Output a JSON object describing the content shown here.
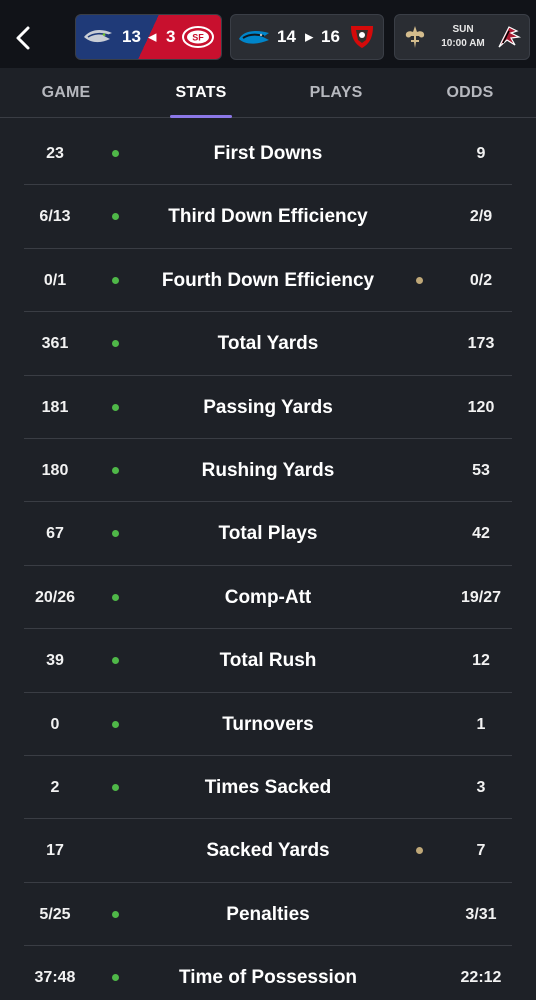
{
  "header": {
    "games": [
      {
        "away_score": "13",
        "home_score": "3",
        "away_logo": "seahawks-logo",
        "home_logo": "49ers-logo",
        "indicator": "◀"
      },
      {
        "away_score": "14",
        "home_score": "16",
        "away_logo": "panthers-logo",
        "home_logo": "buccaneers-logo",
        "indicator": "▶"
      },
      {
        "day": "SUN",
        "time": "10:00 AM",
        "away_logo": "saints-logo",
        "home_logo": "falcons-logo"
      }
    ]
  },
  "tabs": [
    {
      "label": "GAME",
      "active": false
    },
    {
      "label": "STATS",
      "active": true
    },
    {
      "label": "PLAYS",
      "active": false
    },
    {
      "label": "ODDS",
      "active": false
    }
  ],
  "colors": {
    "left_leader_dot": "#4fb848",
    "right_leader_dot": "#bfa878",
    "tab_indicator": "#8c78e8"
  },
  "stats": [
    {
      "label": "First Downs",
      "left": "23",
      "right": "9",
      "leader": "left"
    },
    {
      "label": "Third Down Efficiency",
      "left": "6/13",
      "right": "2/9",
      "leader": "left"
    },
    {
      "label": "Fourth Down Efficiency",
      "left": "0/1",
      "right": "0/2",
      "leader": "both"
    },
    {
      "label": "Total Yards",
      "left": "361",
      "right": "173",
      "leader": "left"
    },
    {
      "label": "Passing Yards",
      "left": "181",
      "right": "120",
      "leader": "left"
    },
    {
      "label": "Rushing Yards",
      "left": "180",
      "right": "53",
      "leader": "left"
    },
    {
      "label": "Total Plays",
      "left": "67",
      "right": "42",
      "leader": "left"
    },
    {
      "label": "Comp-Att",
      "left": "20/26",
      "right": "19/27",
      "leader": "left"
    },
    {
      "label": "Total Rush",
      "left": "39",
      "right": "12",
      "leader": "left"
    },
    {
      "label": "Turnovers",
      "left": "0",
      "right": "1",
      "leader": "left"
    },
    {
      "label": "Times Sacked",
      "left": "2",
      "right": "3",
      "leader": "left"
    },
    {
      "label": "Sacked Yards",
      "left": "17",
      "right": "7",
      "leader": "right"
    },
    {
      "label": "Penalties",
      "left": "5/25",
      "right": "3/31",
      "leader": "left"
    },
    {
      "label": "Time of Possession",
      "left": "37:48",
      "right": "22:12",
      "leader": "left"
    }
  ]
}
